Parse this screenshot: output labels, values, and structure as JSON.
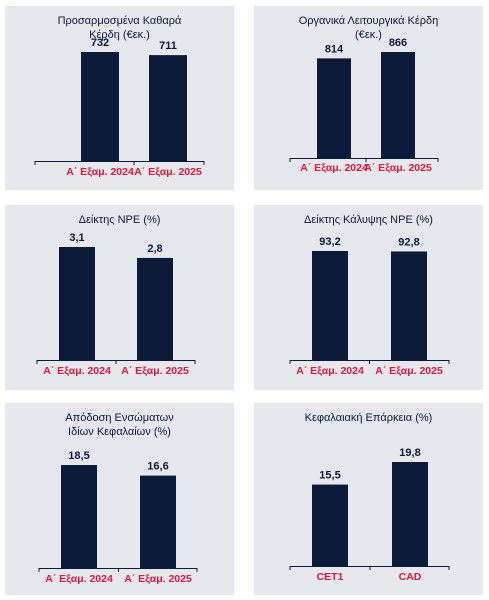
{
  "colors": {
    "bar": "#0c1a3a",
    "category_text": "#e0183a",
    "axis": "#0c1a3a",
    "panel_bg": "#e6e8ee"
  },
  "chart_data": [
    {
      "type": "bar",
      "title": "Προσαρμοσμένα Καθαρά Κέρδη (€εκ.)",
      "categories": [
        "Α΄ Εξαμ. 2024",
        "Α΄ Εξαμ. 2025"
      ],
      "values": [
        732,
        711
      ],
      "value_labels": [
        "732",
        "711"
      ],
      "ylim": [
        0,
        800
      ]
    },
    {
      "type": "bar",
      "title": "Οργανικά Λειτουργικά Κέρδη (€εκ.)",
      "categories": [
        "Α΄ Εξαμ. 2024",
        "Α΄ Εξαμ. 2025"
      ],
      "values": [
        814,
        866
      ],
      "value_labels": [
        "814",
        "866"
      ],
      "ylim": [
        0,
        1000
      ]
    },
    {
      "type": "bar",
      "title": "Δείκτης NPE (%)",
      "categories": [
        "Α΄ Εξαμ. 2024",
        "Α΄ Εξαμ. 2025"
      ],
      "values": [
        3.1,
        2.8
      ],
      "value_labels": [
        "3,1",
        "2,8"
      ],
      "ylim": [
        0,
        4
      ]
    },
    {
      "type": "bar",
      "title": "Δείκτης Κάλυψης NPE (%)",
      "categories": [
        "Α΄ Εξαμ. 2024",
        "Α΄ Εξαμ. 2025"
      ],
      "values": [
        93.2,
        92.8
      ],
      "value_labels": [
        "93,2",
        "92,8"
      ],
      "ylim": [
        0,
        100
      ]
    },
    {
      "type": "bar",
      "title": "Απόδοση Ενσώματων Ιδίων Κεφαλαίων (%)",
      "categories": [
        "Α΄ Εξαμ. 2024",
        "Α΄ Εξαμ. 2025"
      ],
      "values": [
        18.5,
        16.6
      ],
      "value_labels": [
        "18,5",
        "16,6"
      ],
      "ylim": [
        0,
        20
      ]
    },
    {
      "type": "bar",
      "title": "Κεφαλαιακή Επάρκεια (%)",
      "categories": [
        "CET1",
        "CAD"
      ],
      "values": [
        15.5,
        19.8
      ],
      "value_labels": [
        "15,5",
        "19,8"
      ],
      "ylim": [
        0,
        22
      ]
    }
  ]
}
